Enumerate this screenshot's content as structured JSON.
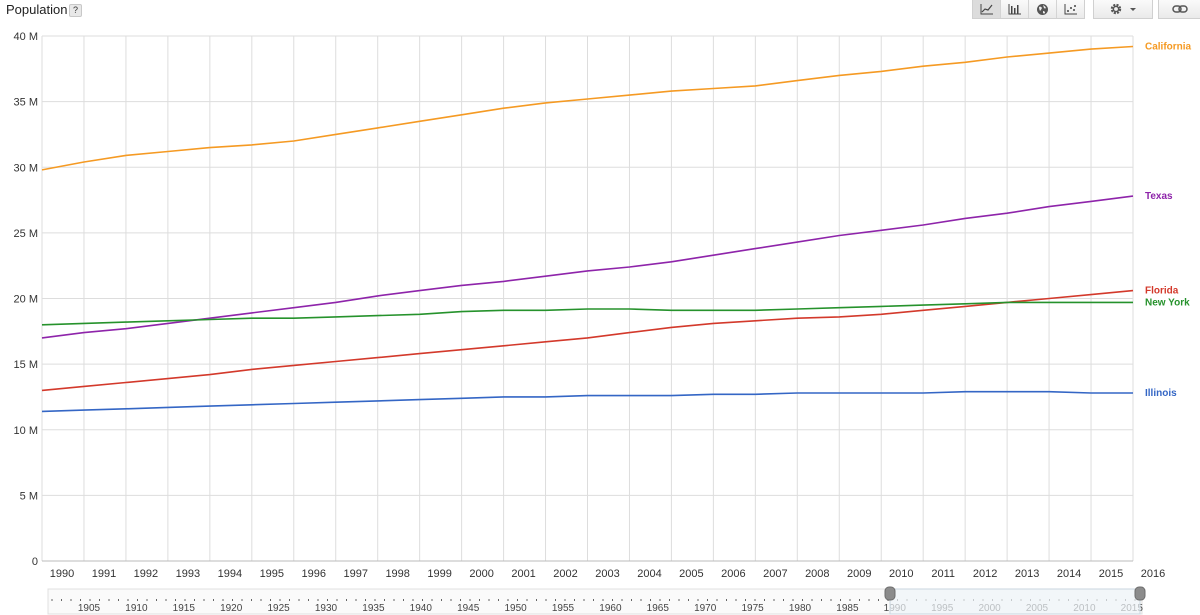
{
  "header": {
    "title": "Population",
    "help_label": "?"
  },
  "toolbar": {
    "chart_buttons": [
      {
        "icon": "line-chart-icon",
        "active": true
      },
      {
        "icon": "bar-chart-icon",
        "active": false
      },
      {
        "icon": "globe-icon",
        "active": false
      },
      {
        "icon": "scatter-chart-icon",
        "active": false
      }
    ],
    "settings_icon": "gear-icon",
    "link_icon": "link-icon"
  },
  "colors": {
    "grid": "#dddddd",
    "axis_text": "#333333",
    "navigator_window": "#eef4f8"
  },
  "chart_data": {
    "type": "line",
    "title": "Population",
    "x": [
      1990,
      1991,
      1992,
      1993,
      1994,
      1995,
      1996,
      1997,
      1998,
      1999,
      2000,
      2001,
      2002,
      2003,
      2004,
      2005,
      2006,
      2007,
      2008,
      2009,
      2010,
      2011,
      2012,
      2013,
      2014,
      2015,
      2016
    ],
    "x_tick_labels": [
      "1990",
      "1991",
      "1992",
      "1993",
      "1994",
      "1995",
      "1996",
      "1997",
      "1998",
      "1999",
      "2000",
      "2001",
      "2002",
      "2003",
      "2004",
      "2005",
      "2006",
      "2007",
      "2008",
      "2009",
      "2010",
      "2011",
      "2012",
      "2013",
      "2014",
      "2015",
      "2016"
    ],
    "ylim": [
      0,
      40000000
    ],
    "y_ticks": [
      0,
      5000000,
      10000000,
      15000000,
      20000000,
      25000000,
      30000000,
      35000000,
      40000000
    ],
    "y_tick_labels": [
      "0",
      "5 M",
      "10 M",
      "15 M",
      "20 M",
      "25 M",
      "30 M",
      "35 M",
      "40 M"
    ],
    "grid": true,
    "legend": "series labels at right end of lines",
    "series": [
      {
        "name": "California",
        "color": "#f59a23",
        "values": [
          29800000,
          30400000,
          30900000,
          31200000,
          31500000,
          31700000,
          32000000,
          32500000,
          33000000,
          33500000,
          34000000,
          34500000,
          34900000,
          35200000,
          35500000,
          35800000,
          36000000,
          36200000,
          36600000,
          37000000,
          37300000,
          37700000,
          38000000,
          38400000,
          38700000,
          39000000,
          39200000
        ]
      },
      {
        "name": "Texas",
        "color": "#8e24aa",
        "values": [
          17000000,
          17400000,
          17700000,
          18100000,
          18500000,
          18900000,
          19300000,
          19700000,
          20200000,
          20600000,
          21000000,
          21300000,
          21700000,
          22100000,
          22400000,
          22800000,
          23300000,
          23800000,
          24300000,
          24800000,
          25200000,
          25600000,
          26100000,
          26500000,
          27000000,
          27400000,
          27800000
        ]
      },
      {
        "name": "Florida",
        "color": "#d3392b",
        "values": [
          13000000,
          13300000,
          13600000,
          13900000,
          14200000,
          14600000,
          14900000,
          15200000,
          15500000,
          15800000,
          16100000,
          16400000,
          16700000,
          17000000,
          17400000,
          17800000,
          18100000,
          18300000,
          18500000,
          18600000,
          18800000,
          19100000,
          19400000,
          19700000,
          20000000,
          20300000,
          20600000
        ]
      },
      {
        "name": "New York",
        "color": "#26922c",
        "values": [
          18000000,
          18100000,
          18200000,
          18300000,
          18400000,
          18500000,
          18500000,
          18600000,
          18700000,
          18800000,
          19000000,
          19100000,
          19100000,
          19200000,
          19200000,
          19100000,
          19100000,
          19100000,
          19200000,
          19300000,
          19400000,
          19500000,
          19600000,
          19700000,
          19700000,
          19700000,
          19700000
        ]
      },
      {
        "name": "Illinois",
        "color": "#3466c5",
        "values": [
          11400000,
          11500000,
          11600000,
          11700000,
          11800000,
          11900000,
          12000000,
          12100000,
          12200000,
          12300000,
          12400000,
          12500000,
          12500000,
          12600000,
          12600000,
          12600000,
          12700000,
          12700000,
          12800000,
          12800000,
          12800000,
          12800000,
          12900000,
          12900000,
          12900000,
          12800000,
          12800000
        ]
      }
    ]
  },
  "navigator": {
    "labels": [
      "1905",
      "1910",
      "1915",
      "1920",
      "1925",
      "1930",
      "1935",
      "1940",
      "1945",
      "1950",
      "1955",
      "1960",
      "1965",
      "1970",
      "1975",
      "1980",
      "1985",
      "1990",
      "1995",
      "2000",
      "2005",
      "2010",
      "2015"
    ]
  }
}
